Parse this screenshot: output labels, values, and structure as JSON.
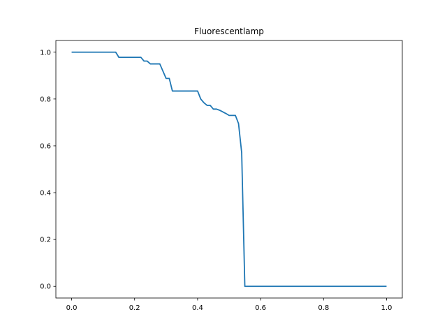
{
  "chart_data": {
    "type": "line",
    "title": "Fluorescentlamp",
    "xlabel": "",
    "ylabel": "",
    "xlim": [
      -0.05,
      1.05
    ],
    "ylim": [
      -0.05,
      1.05
    ],
    "grid": false,
    "line_color": "#1f77b4",
    "x_ticks": [
      {
        "value": 0.0,
        "label": "0.0"
      },
      {
        "value": 0.2,
        "label": "0.2"
      },
      {
        "value": 0.4,
        "label": "0.4"
      },
      {
        "value": 0.6,
        "label": "0.6"
      },
      {
        "value": 0.8,
        "label": "0.8"
      },
      {
        "value": 1.0,
        "label": "1.0"
      }
    ],
    "y_ticks": [
      {
        "value": 0.0,
        "label": "0.0"
      },
      {
        "value": 0.2,
        "label": "0.2"
      },
      {
        "value": 0.4,
        "label": "0.4"
      },
      {
        "value": 0.6,
        "label": "0.6"
      },
      {
        "value": 0.8,
        "label": "0.8"
      },
      {
        "value": 1.0,
        "label": "1.0"
      }
    ],
    "series": [
      {
        "x": [
          0.0,
          0.14,
          0.15,
          0.22,
          0.23,
          0.24,
          0.25,
          0.28,
          0.3,
          0.31,
          0.32,
          0.4,
          0.41,
          0.42,
          0.43,
          0.44,
          0.45,
          0.46,
          0.47,
          0.48,
          0.49,
          0.5,
          0.52,
          0.53,
          0.54,
          0.55,
          1.0
        ],
        "y": [
          1.0,
          1.0,
          0.978,
          0.978,
          0.962,
          0.962,
          0.95,
          0.95,
          0.888,
          0.888,
          0.834,
          0.834,
          0.8,
          0.784,
          0.773,
          0.773,
          0.757,
          0.757,
          0.752,
          0.745,
          0.738,
          0.73,
          0.73,
          0.695,
          0.57,
          0.0,
          0.0
        ]
      }
    ]
  }
}
